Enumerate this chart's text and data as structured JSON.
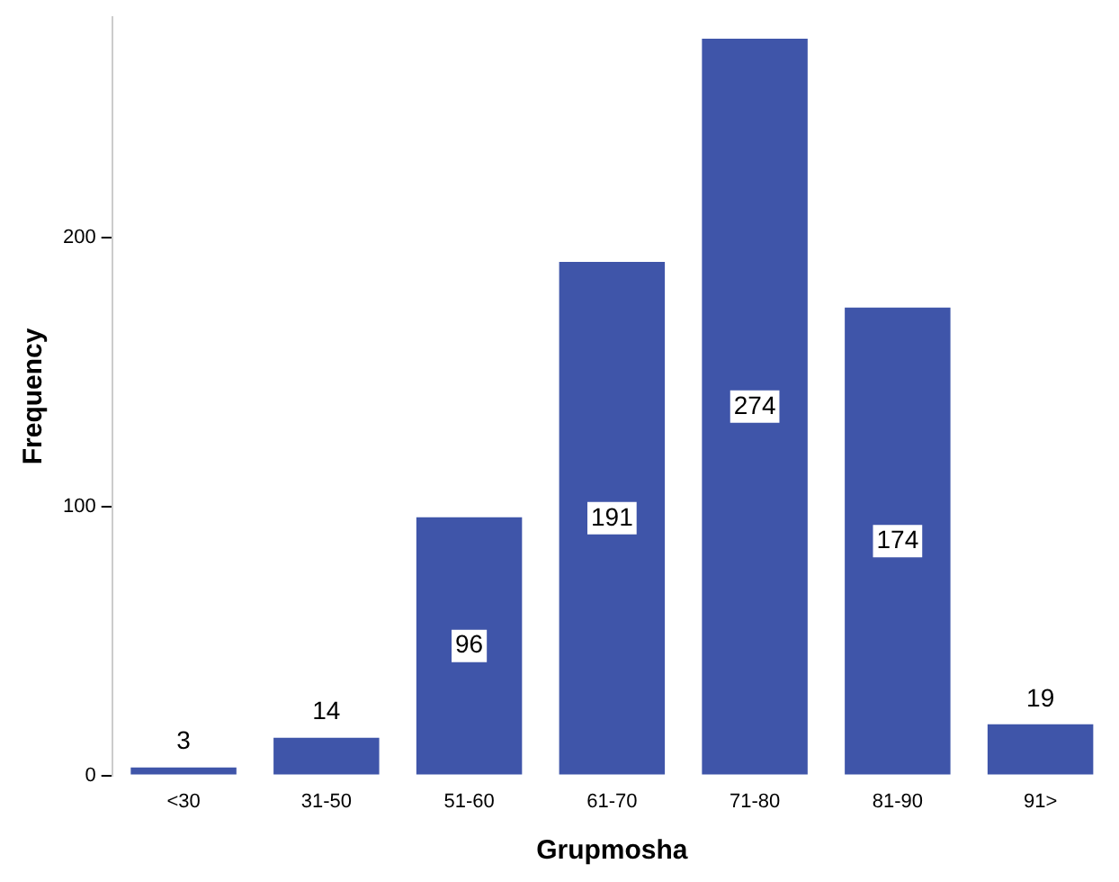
{
  "chart_data": {
    "type": "bar",
    "xlabel": "Grupmosha",
    "ylabel": "Frequency",
    "categories": [
      "<30",
      "31-50",
      "51-60",
      "61-70",
      "71-80",
      "81-90",
      "91>"
    ],
    "values": [
      3,
      14,
      96,
      191,
      274,
      174,
      19
    ],
    "color": "#3f55a9",
    "ylim": [
      0,
      282
    ],
    "yticks": [
      0,
      100,
      200
    ],
    "grid": false,
    "legend": false,
    "data_labels": true
  }
}
